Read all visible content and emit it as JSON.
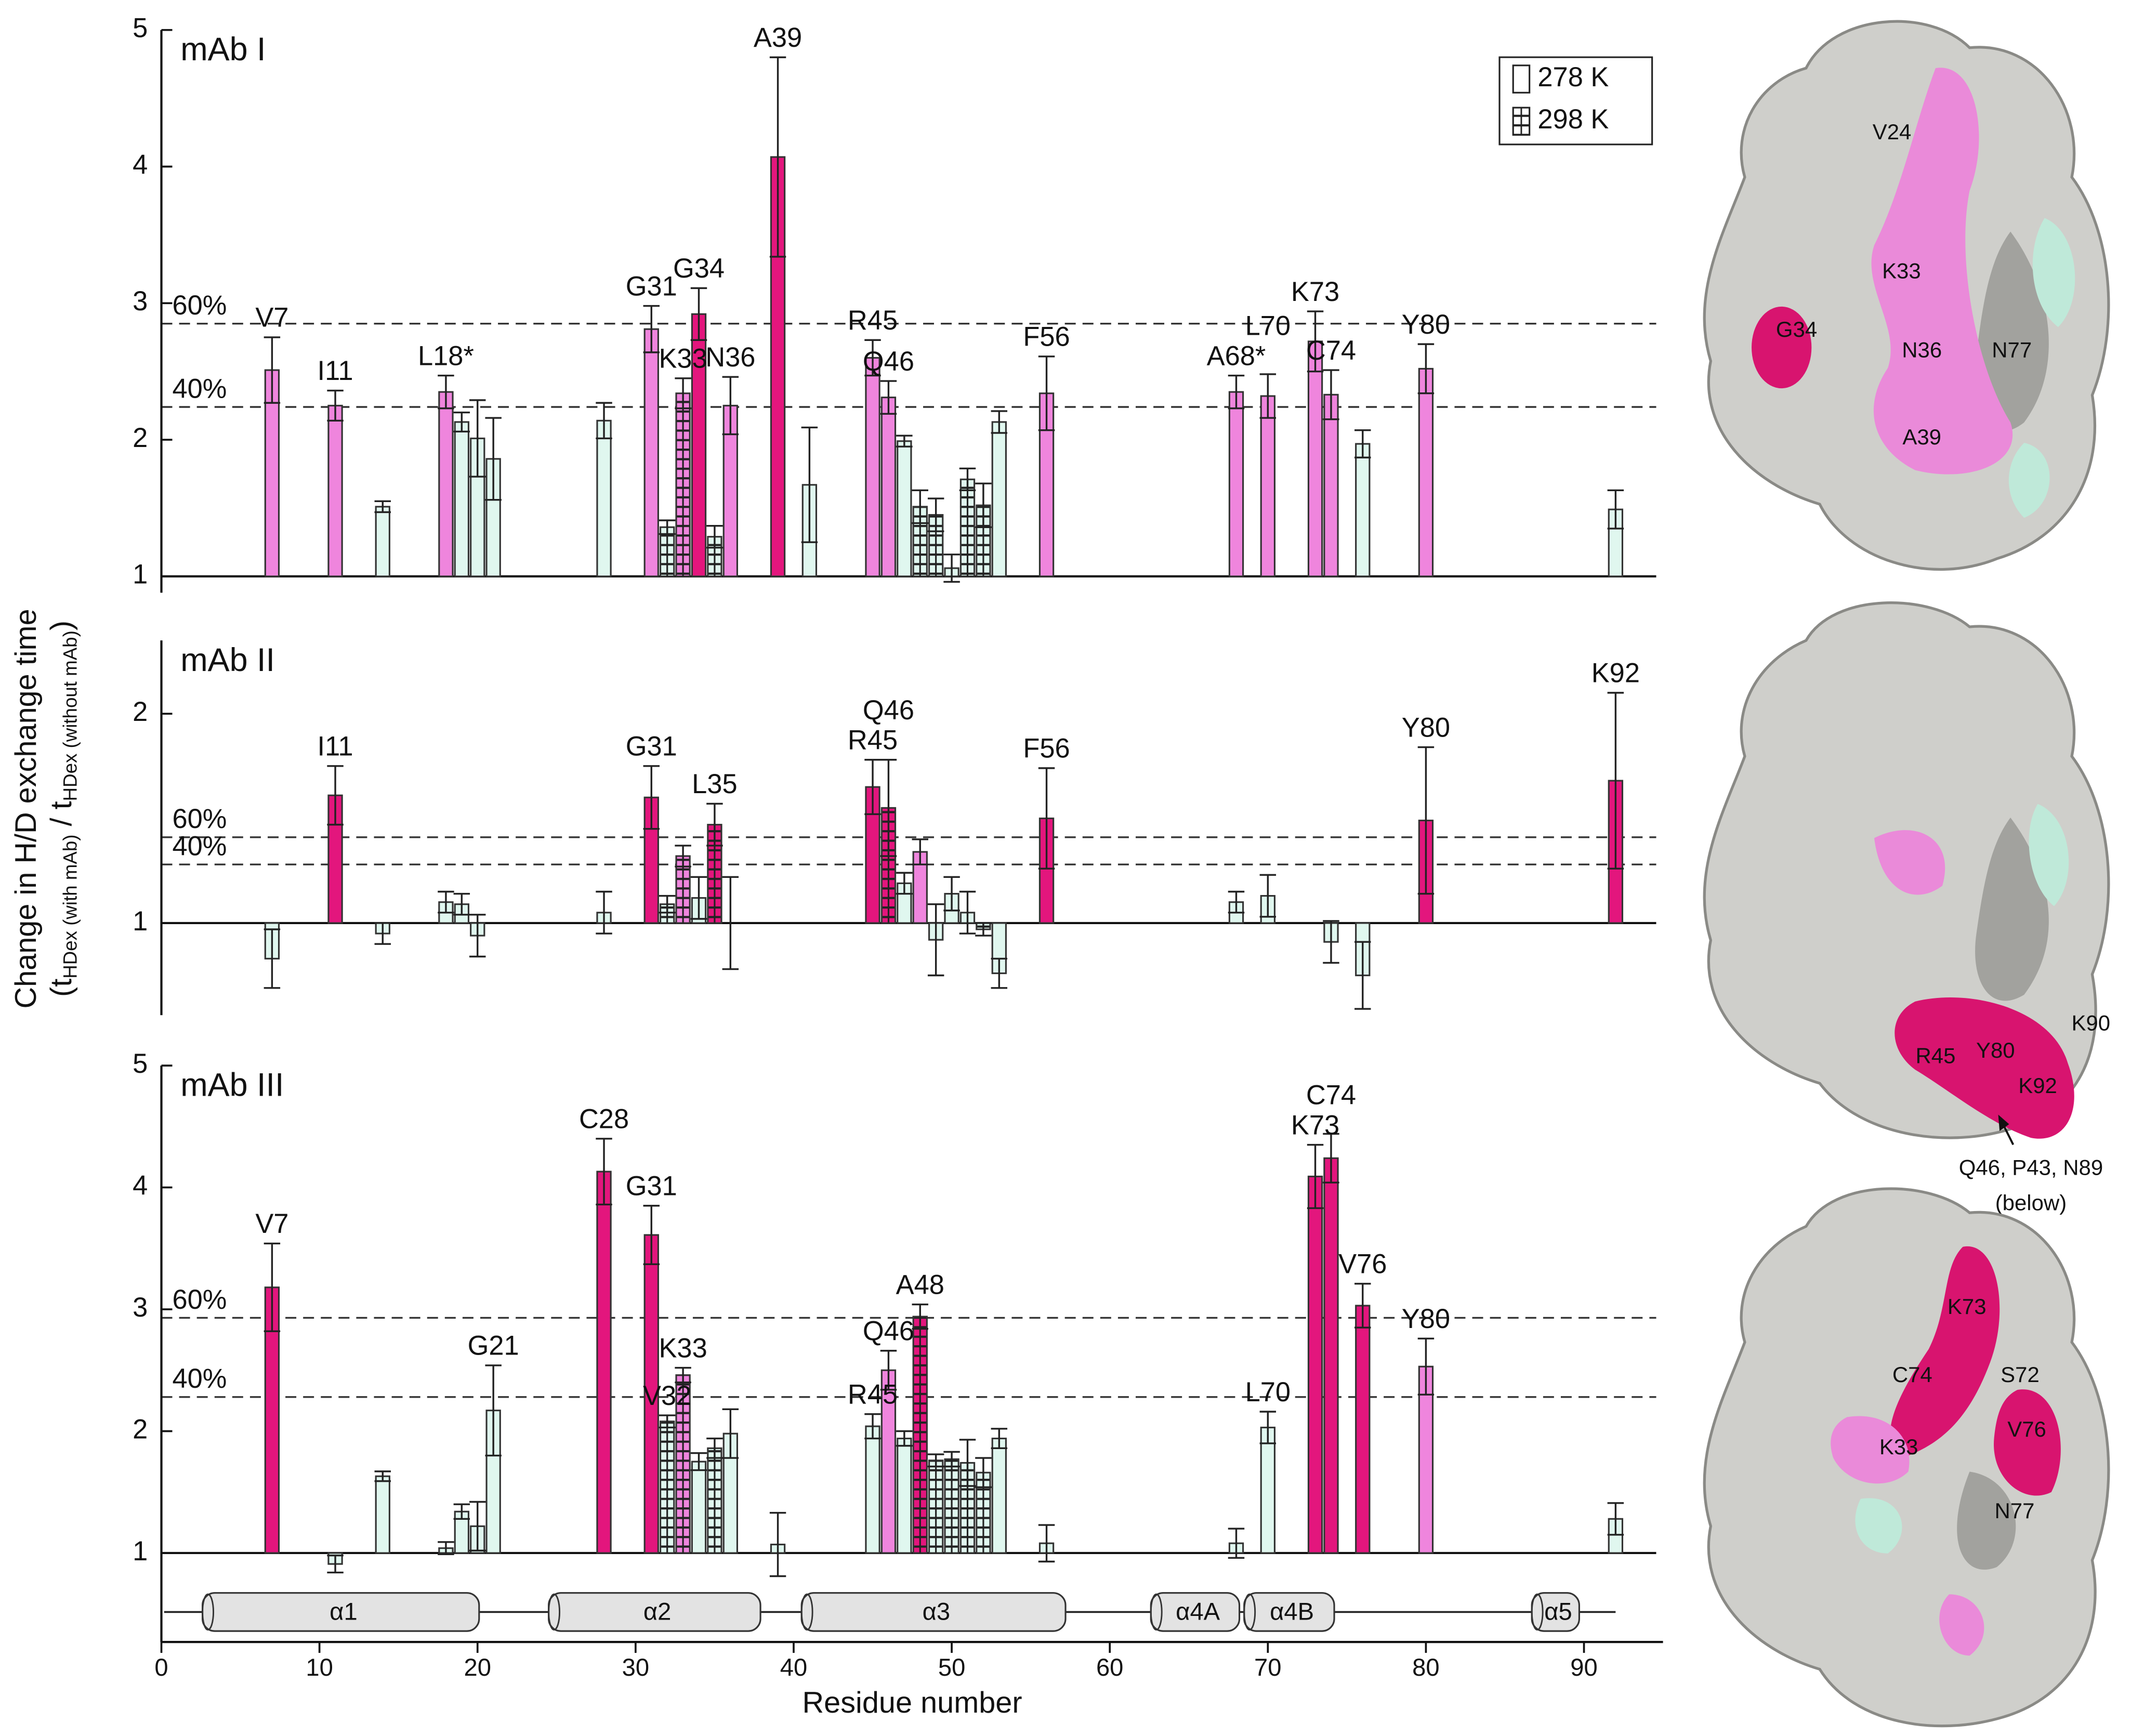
{
  "chart_data": [
    {
      "type": "bar",
      "title": "mAb I",
      "xlim": [
        0,
        95
      ],
      "ylim": [
        0.88,
        5
      ],
      "yticks": [
        1,
        2,
        3,
        4,
        5
      ],
      "baseline": 1,
      "legend": "upper right",
      "reference_lines": [
        {
          "label": "60%",
          "value": 2.85
        },
        {
          "label": "40%",
          "value": 2.24
        }
      ],
      "series": [
        {
          "name": "278 K",
          "pattern": "none",
          "x": [
            7,
            11,
            14,
            18,
            19,
            20,
            21,
            28,
            31,
            34,
            36,
            39,
            41,
            45,
            46,
            47,
            50,
            53,
            56,
            68,
            70,
            73,
            74,
            76,
            80,
            92
          ],
          "values": [
            2.51,
            2.25,
            1.51,
            2.35,
            2.13,
            2.01,
            1.86,
            2.14,
            2.81,
            2.92,
            2.25,
            4.07,
            1.67,
            2.6,
            2.31,
            1.99,
            1.06,
            2.13,
            2.34,
            2.35,
            2.32,
            2.72,
            2.33,
            1.97,
            2.52,
            1.49
          ],
          "errors": [
            0.24,
            0.11,
            0.04,
            0.12,
            0.07,
            0.28,
            0.3,
            0.13,
            0.17,
            0.19,
            0.21,
            0.73,
            0.42,
            0.13,
            0.12,
            0.04,
            0.1,
            0.08,
            0.27,
            0.12,
            0.16,
            0.22,
            0.18,
            0.1,
            0.18,
            0.14
          ],
          "colors": [
            "#ef85dd",
            "#ef85dd",
            "#e0f7ef",
            "#ef85dd",
            "#e0f7ef",
            "#e0f7ef",
            "#e0f7ef",
            "#e0f7ef",
            "#ef85dd",
            "#e3167d",
            "#ef85dd",
            "#e3167d",
            "#e0f7ef",
            "#ef85dd",
            "#ef85dd",
            "#e0f7ef",
            "#e0f7ef",
            "#e0f7ef",
            "#ef85dd",
            "#ef85dd",
            "#ef85dd",
            "#ef85dd",
            "#ef85dd",
            "#e0f7ef",
            "#ef85dd",
            "#e0f7ef"
          ]
        },
        {
          "name": "298 K",
          "pattern": "grid",
          "x": [
            32,
            33,
            35,
            48,
            49,
            51,
            52
          ],
          "values": [
            1.36,
            2.34,
            1.29,
            1.51,
            1.45,
            1.71,
            1.52
          ],
          "errors": [
            0.05,
            0.11,
            0.08,
            0.12,
            0.12,
            0.08,
            0.16
          ],
          "colors": [
            "#e0f7ef",
            "#ef85dd",
            "#e0f7ef",
            "#e0f7ef",
            "#e0f7ef",
            "#e0f7ef",
            "#e0f7ef"
          ]
        }
      ],
      "annotations": [
        {
          "text": "V7",
          "x": 7
        },
        {
          "text": "I11",
          "x": 11
        },
        {
          "text": "L18*",
          "x": 18
        },
        {
          "text": "G31",
          "x": 31
        },
        {
          "text": "K33",
          "x": 33
        },
        {
          "text": "G34",
          "x": 34
        },
        {
          "text": "N36",
          "x": 36
        },
        {
          "text": "A39",
          "x": 39
        },
        {
          "text": "R45",
          "x": 45
        },
        {
          "text": "Q46",
          "x": 46
        },
        {
          "text": "F56",
          "x": 56
        },
        {
          "text": "A68*",
          "x": 68
        },
        {
          "text": "L70",
          "x": 70
        },
        {
          "text": "K73",
          "x": 73
        },
        {
          "text": "C74",
          "x": 74
        },
        {
          "text": "Y80",
          "x": 80
        }
      ]
    },
    {
      "type": "bar",
      "title": "mAb II",
      "xlim": [
        0,
        95
      ],
      "ylim": [
        0.56,
        2.35
      ],
      "yticks": [
        1,
        2
      ],
      "baseline": 1,
      "ylabel": "Change in H/D exchange time",
      "ylabel_parts": [
        "(t",
        "HDex (with mAb)",
        " / t",
        "HDex (without mAb)",
        ")"
      ],
      "reference_lines": [
        {
          "label": "60%",
          "value": 1.41
        },
        {
          "label": "40%",
          "value": 1.28
        }
      ],
      "series": [
        {
          "name": "278 K",
          "pattern": "none",
          "x": [
            7,
            11,
            14,
            18,
            19,
            20,
            28,
            31,
            34,
            36,
            45,
            47,
            48,
            49,
            50,
            51,
            53,
            56,
            68,
            70,
            74,
            76,
            80,
            92
          ],
          "values": [
            0.83,
            1.61,
            0.95,
            1.1,
            1.09,
            0.94,
            1.05,
            1.6,
            1.12,
            1.0,
            1.65,
            1.19,
            1.34,
            0.92,
            1.14,
            1.05,
            0.76,
            1.5,
            1.1,
            1.13,
            0.91,
            0.75,
            1.49,
            1.68
          ],
          "errors": [
            0.14,
            0.14,
            0.05,
            0.05,
            0.05,
            0.1,
            0.1,
            0.15,
            0.1,
            0.22,
            0.13,
            0.05,
            0.06,
            0.17,
            0.08,
            0.1,
            0.07,
            0.24,
            0.05,
            0.1,
            0.1,
            0.16,
            0.35,
            0.42
          ],
          "colors": [
            "#e0f7ef",
            "#e3167d",
            "#e0f7ef",
            "#e0f7ef",
            "#e0f7ef",
            "#e0f7ef",
            "#e0f7ef",
            "#e3167d",
            "#e0f7ef",
            "#e0f7ef",
            "#e3167d",
            "#e0f7ef",
            "#ef85dd",
            "#e0f7ef",
            "#e0f7ef",
            "#e0f7ef",
            "#e0f7ef",
            "#e3167d",
            "#e0f7ef",
            "#e0f7ef",
            "#e0f7ef",
            "#e0f7ef",
            "#e3167d",
            "#e3167d"
          ]
        },
        {
          "name": "298 K",
          "pattern": "grid",
          "x": [
            32,
            33,
            35,
            46,
            52
          ],
          "values": [
            1.09,
            1.32,
            1.47,
            1.55,
            0.97
          ],
          "errors": [
            0.04,
            0.05,
            0.1,
            0.23,
            0.03
          ],
          "colors": [
            "#e0f7ef",
            "#ef85dd",
            "#e3167d",
            "#e3167d",
            "#e0f7ef"
          ]
        }
      ],
      "annotations": [
        {
          "text": "I11",
          "x": 11
        },
        {
          "text": "G31",
          "x": 31
        },
        {
          "text": "L35",
          "x": 35
        },
        {
          "text": "R45",
          "x": 45
        },
        {
          "text": "Q46",
          "x": 46
        },
        {
          "text": "F56",
          "x": 56
        },
        {
          "text": "Y80",
          "x": 80
        },
        {
          "text": "K92",
          "x": 92
        }
      ]
    },
    {
      "type": "bar",
      "title": "mAb III",
      "xlim": [
        0,
        95
      ],
      "ylim": [
        0.27,
        5
      ],
      "yticks": [
        1,
        2,
        3,
        4,
        5
      ],
      "baseline": 1,
      "xticks": [
        0,
        10,
        20,
        30,
        40,
        50,
        60,
        70,
        80,
        90
      ],
      "x_label": "Residue number",
      "reference_lines": [
        {
          "label": "60%",
          "value": 2.93
        },
        {
          "label": "40%",
          "value": 2.28
        }
      ],
      "series": [
        {
          "name": "278 K",
          "pattern": "none",
          "x": [
            7,
            11,
            14,
            18,
            19,
            20,
            21,
            28,
            31,
            34,
            36,
            39,
            45,
            46,
            47,
            53,
            56,
            68,
            70,
            73,
            74,
            76,
            80,
            92
          ],
          "values": [
            3.18,
            0.91,
            1.63,
            1.04,
            1.34,
            1.22,
            2.17,
            4.13,
            3.61,
            1.75,
            1.98,
            1.07,
            2.04,
            2.5,
            1.94,
            1.94,
            1.08,
            1.08,
            2.03,
            4.09,
            4.24,
            3.03,
            2.53,
            1.28
          ],
          "errors": [
            0.36,
            0.07,
            0.04,
            0.05,
            0.06,
            0.2,
            0.37,
            0.27,
            0.24,
            0.07,
            0.2,
            0.26,
            0.1,
            0.16,
            0.06,
            0.08,
            0.15,
            0.12,
            0.13,
            0.26,
            0.2,
            0.18,
            0.23,
            0.13
          ],
          "colors": [
            "#e3167d",
            "#e0f7ef",
            "#e0f7ef",
            "#e0f7ef",
            "#e0f7ef",
            "#e0f7ef",
            "#e0f7ef",
            "#e3167d",
            "#e3167d",
            "#e0f7ef",
            "#e0f7ef",
            "#e0f7ef",
            "#e0f7ef",
            "#ef85dd",
            "#e0f7ef",
            "#e0f7ef",
            "#e0f7ef",
            "#e0f7ef",
            "#e0f7ef",
            "#e3167d",
            "#e3167d",
            "#e3167d",
            "#ef85dd",
            "#e0f7ef"
          ]
        },
        {
          "name": "298 K",
          "pattern": "grid",
          "x": [
            32,
            33,
            35,
            48,
            49,
            50,
            51,
            52
          ],
          "values": [
            2.08,
            2.46,
            1.86,
            2.94,
            1.76,
            1.77,
            1.74,
            1.66
          ],
          "errors": [
            0.05,
            0.06,
            0.08,
            0.1,
            0.05,
            0.06,
            0.19,
            0.12
          ],
          "colors": [
            "#e0f7ef",
            "#ef85dd",
            "#e0f7ef",
            "#e3167d",
            "#e0f7ef",
            "#e0f7ef",
            "#e0f7ef",
            "#e0f7ef"
          ]
        }
      ],
      "annotations": [
        {
          "text": "V7",
          "x": 7
        },
        {
          "text": "G21",
          "x": 21
        },
        {
          "text": "C28",
          "x": 28
        },
        {
          "text": "G31",
          "x": 31
        },
        {
          "text": "V32",
          "x": 32
        },
        {
          "text": "K33",
          "x": 33
        },
        {
          "text": "R45",
          "x": 45
        },
        {
          "text": "Q46",
          "x": 46
        },
        {
          "text": "A48",
          "x": 48
        },
        {
          "text": "L70",
          "x": 70
        },
        {
          "text": "K73",
          "x": 73
        },
        {
          "text": "C74",
          "x": 74
        },
        {
          "text": "V76",
          "x": 76
        },
        {
          "text": "Y80",
          "x": 80
        }
      ],
      "secondary_structure": [
        {
          "label": "α1",
          "start": 2.6,
          "end": 20.1
        },
        {
          "label": "α2",
          "start": 24.5,
          "end": 37.9
        },
        {
          "label": "α3",
          "start": 40.5,
          "end": 57.2
        },
        {
          "label": "α4A",
          "start": 62.6,
          "end": 68.2
        },
        {
          "label": "α4B",
          "start": 68.5,
          "end": 74.2
        },
        {
          "label": "α5",
          "start": 86.7,
          "end": 89.7
        }
      ]
    }
  ],
  "structures": [
    {
      "labels": [
        "V24",
        "K33",
        "G34",
        "N36",
        "N77",
        "A39"
      ]
    },
    {
      "labels": [
        "Y80",
        "K90",
        "R45",
        "K92",
        "Q46, P43, N89",
        "(below)"
      ]
    },
    {
      "labels": [
        "K73",
        "C74",
        "S72",
        "K33",
        "V76",
        "N77"
      ]
    }
  ]
}
